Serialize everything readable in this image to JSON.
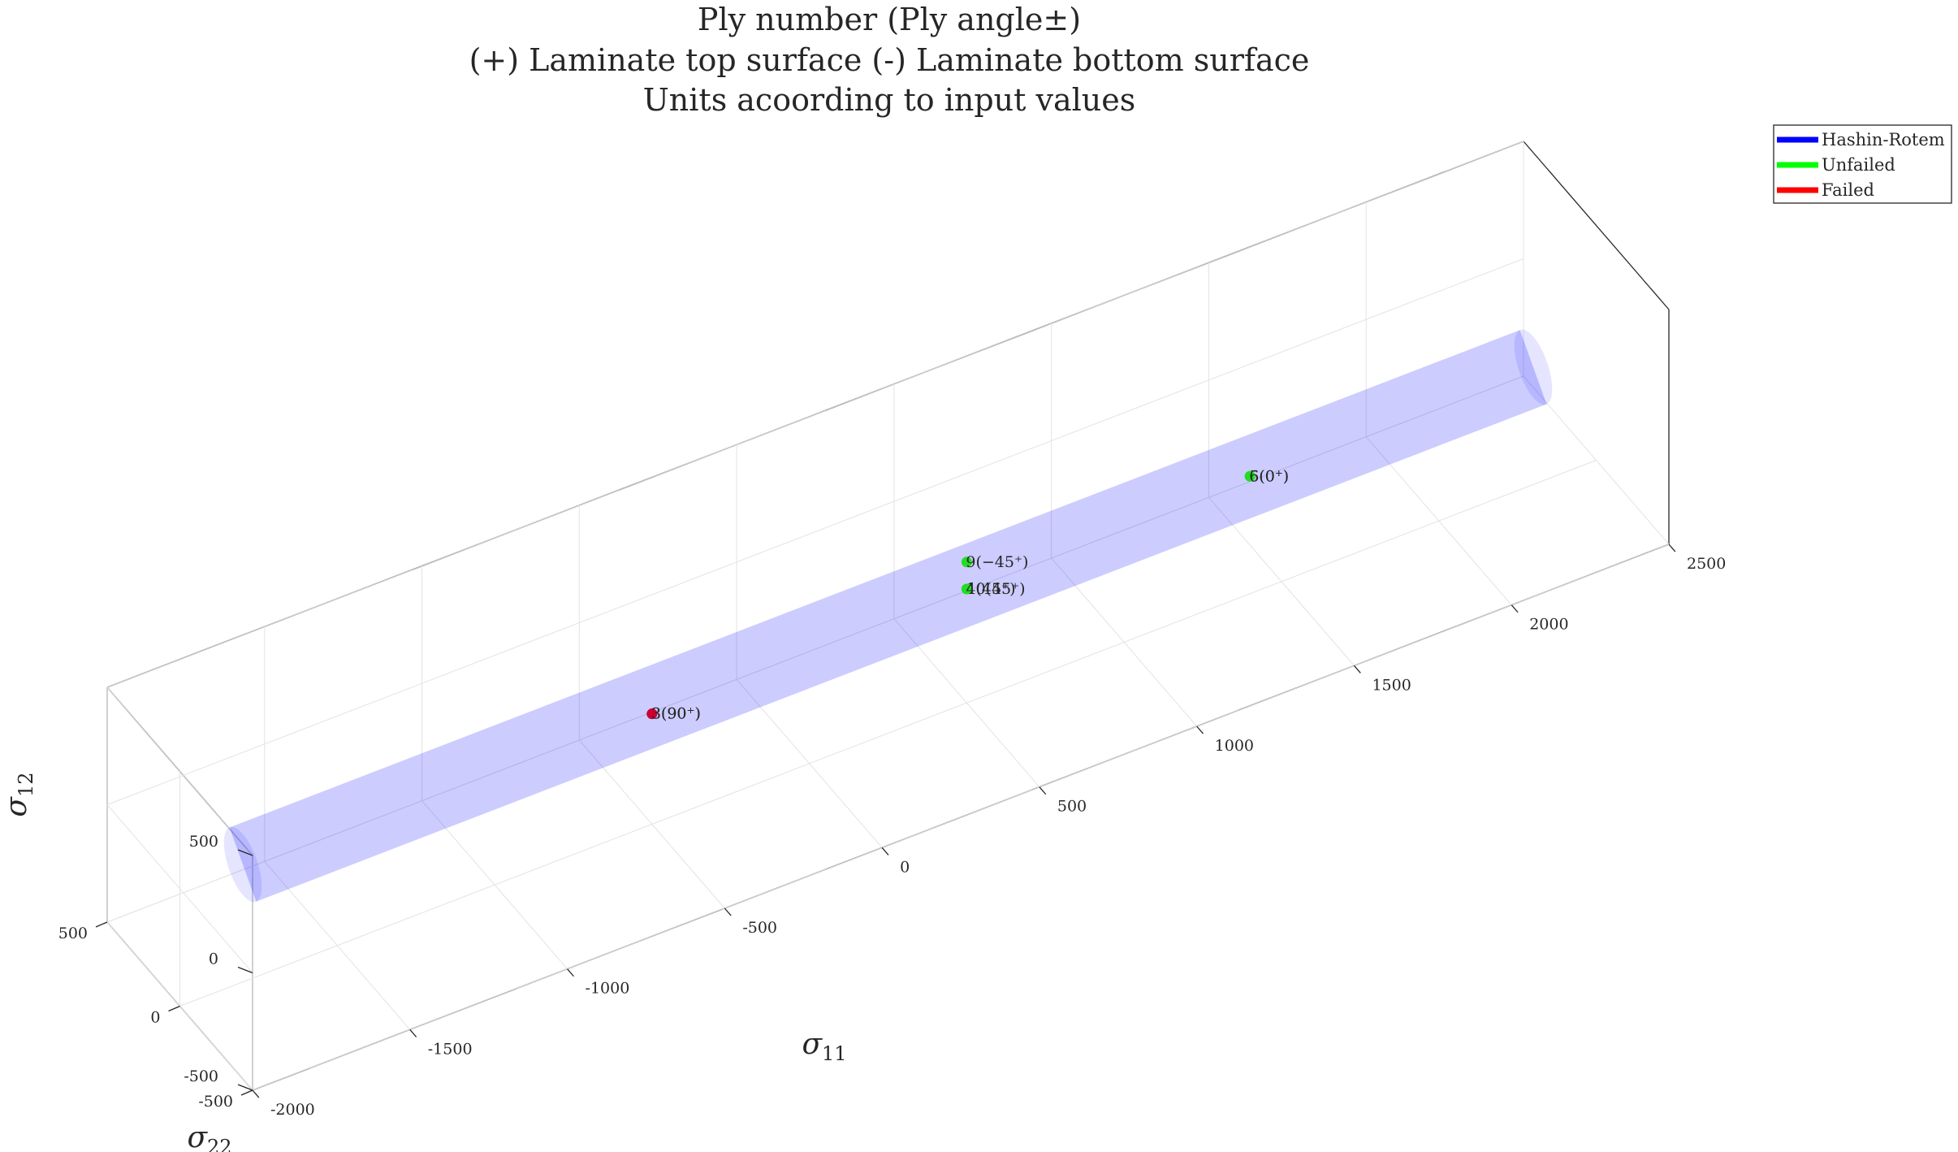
{
  "chart_data": {
    "type": "scatter",
    "title": [
      "Ply number (Ply angle±)",
      "(+) Laminate top surface (-) Laminate bottom surface",
      "Units acoording to input values"
    ],
    "xlabel": "σ11",
    "ylabel": "σ22",
    "zlabel": "σ12",
    "xlim": [
      -2000,
      2500
    ],
    "ylim": [
      -500,
      500
    ],
    "zlim": [
      -500,
      500
    ],
    "x_ticks": [
      "-2000",
      "-1500",
      "-1000",
      "-500",
      "0",
      "500",
      "1000",
      "1500",
      "2000",
      "2500"
    ],
    "y_ticks": [
      "-500",
      "0",
      "500"
    ],
    "z_ticks": [
      "-500",
      "0",
      "500"
    ],
    "grid": true,
    "legend_position": "top-right",
    "legend": [
      {
        "label": "Hashin-Rotem",
        "color": "#0000ff"
      },
      {
        "label": "Unfailed",
        "color": "#00ff00"
      },
      {
        "label": "Failed",
        "color": "#ff0000"
      }
    ],
    "surface": {
      "name": "Hashin-Rotem",
      "color": "#0000ff",
      "x_range": [
        -1800,
        2300
      ],
      "radius": 130
    },
    "series": [
      {
        "name": "Unfailed",
        "color": "#22dd22",
        "points": [
          {
            "x": 1400,
            "y": 0,
            "z": 0,
            "label": "5(0⁺)"
          },
          {
            "x": 1400,
            "y": 0,
            "z": 0,
            "label": "6(0⁺)"
          },
          {
            "x": 500,
            "y": 0,
            "z": 100,
            "label": "9(−45⁺)"
          },
          {
            "x": 500,
            "y": 0,
            "z": -15,
            "label": "10(45⁺)"
          },
          {
            "x": 500,
            "y": 0,
            "z": -15,
            "label": "4(45⁺)"
          }
        ]
      },
      {
        "name": "Failed",
        "color": "#cc0033",
        "points": [
          {
            "x": -500,
            "y": 0,
            "z": -30,
            "label": "8(90⁺)"
          },
          {
            "x": -500,
            "y": 0,
            "z": -30,
            "label": "3(90⁺)"
          }
        ]
      }
    ]
  }
}
